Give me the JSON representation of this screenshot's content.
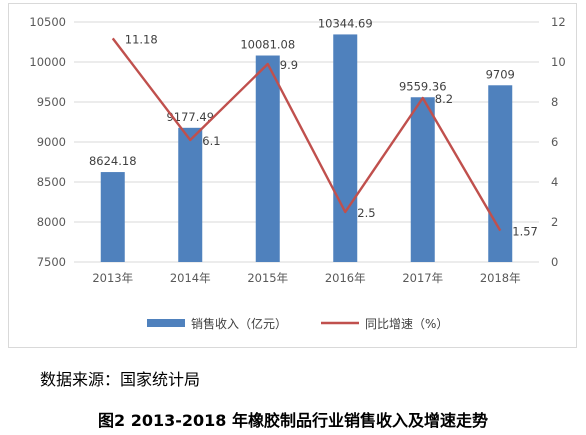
{
  "chart_data": {
    "type": "bar",
    "categories": [
      "2013年",
      "2014年",
      "2015年",
      "2016年",
      "2017年",
      "2018年"
    ],
    "series": [
      {
        "name": "销售收入（亿元）",
        "kind": "bar",
        "axis": "left",
        "color": "#4f81bd",
        "values": [
          8624.18,
          9177.49,
          10081.08,
          10344.69,
          9559.36,
          9709
        ]
      },
      {
        "name": "同比增速（%）",
        "kind": "line",
        "axis": "right",
        "color": "#c0504d",
        "values": [
          11.18,
          6.1,
          9.9,
          2.5,
          8.2,
          1.57
        ]
      }
    ],
    "bar_labels": [
      "8624.18",
      "9177.49",
      "10081.08",
      "10344.69",
      "9559.36",
      "9709"
    ],
    "line_labels": [
      "11.18",
      "6.1",
      "9.9",
      "2.5",
      "8.2",
      "1.57"
    ],
    "left_axis": {
      "ylim": [
        7500,
        10500
      ],
      "ticks": [
        "7500",
        "8000",
        "8500",
        "9000",
        "9500",
        "10000",
        "10500"
      ]
    },
    "right_axis": {
      "ylim": [
        0,
        12
      ],
      "ticks": [
        "0",
        "2",
        "4",
        "6",
        "8",
        "10",
        "12"
      ]
    },
    "grid": true,
    "legend_position": "bottom"
  },
  "source_text": "数据来源：国家统计局",
  "caption": "图2 2013-2018 年橡胶制品行业销售收入及增速走势"
}
